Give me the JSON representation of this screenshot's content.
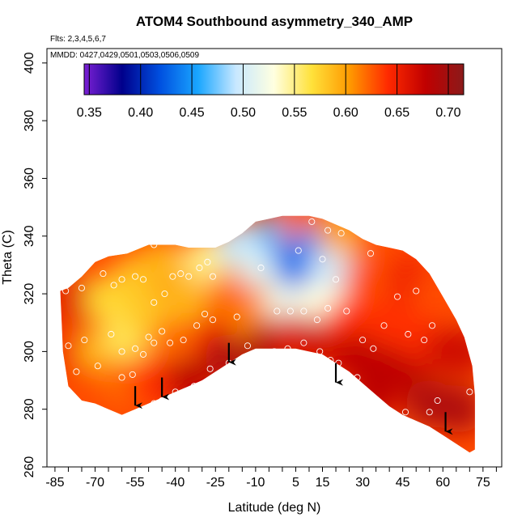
{
  "chart_data": {
    "type": "heatmap",
    "title": "ATOM4 Southbound asymmetry_340_AMP",
    "annotations": [
      "Flts: 2,3,4,5,6,7",
      "MMDD: 0427,0429,0501,0503,0506,0509"
    ],
    "xlabel": "Latitude (deg N)",
    "ylabel": "Theta (C)",
    "xlim": [
      -88,
      82
    ],
    "ylim": [
      260,
      405
    ],
    "x_ticks": [
      -85,
      -70,
      -55,
      -40,
      -25,
      -10,
      5,
      15,
      30,
      45,
      60,
      75
    ],
    "y_ticks": [
      260,
      280,
      300,
      320,
      340,
      360,
      380,
      400
    ],
    "colorbar": {
      "min": 0.345,
      "max": 0.715,
      "ticks": [
        0.35,
        0.4,
        0.45,
        0.5,
        0.55,
        0.6,
        0.65,
        0.7
      ],
      "tick_labels": [
        "0.35",
        "0.40",
        "0.45",
        "0.50",
        "0.55",
        "0.60",
        "0.65",
        "0.70"
      ],
      "colors": [
        "#7b1fd4",
        "#00008b",
        "#0050e0",
        "#1aa6ff",
        "#c8e8ff",
        "#ffffe0",
        "#ffe13a",
        "#ff9900",
        "#ff2a00",
        "#c00000",
        "#8b1a1a"
      ]
    },
    "domain_top": [
      [
        -83,
        321
      ],
      [
        -80,
        322
      ],
      [
        -75,
        326
      ],
      [
        -70,
        331
      ],
      [
        -65,
        333
      ],
      [
        -58,
        334
      ],
      [
        -50,
        337
      ],
      [
        -45,
        337
      ],
      [
        -40,
        337
      ],
      [
        -35,
        336
      ],
      [
        -30,
        336
      ],
      [
        -25,
        336
      ],
      [
        -20,
        338
      ],
      [
        -15,
        341
      ],
      [
        -10,
        345
      ],
      [
        -5,
        346
      ],
      [
        0,
        347
      ],
      [
        5,
        347
      ],
      [
        10,
        347
      ],
      [
        15,
        346
      ],
      [
        20,
        344
      ],
      [
        25,
        342
      ],
      [
        30,
        339
      ],
      [
        35,
        337
      ],
      [
        40,
        336
      ],
      [
        45,
        335
      ],
      [
        50,
        332
      ],
      [
        55,
        327
      ],
      [
        60,
        319
      ],
      [
        65,
        311
      ],
      [
        68,
        305
      ],
      [
        71,
        295
      ],
      [
        72,
        285
      ]
    ],
    "domain_bottom": [
      [
        -83,
        321
      ],
      [
        -82,
        300
      ],
      [
        -80,
        288
      ],
      [
        -75,
        283
      ],
      [
        -70,
        282
      ],
      [
        -65,
        280
      ],
      [
        -60,
        278
      ],
      [
        -55,
        280
      ],
      [
        -50,
        282
      ],
      [
        -45,
        284
      ],
      [
        -40,
        286
      ],
      [
        -35,
        288
      ],
      [
        -30,
        290
      ],
      [
        -25,
        293
      ],
      [
        -20,
        296
      ],
      [
        -15,
        299
      ],
      [
        -10,
        301
      ],
      [
        -5,
        301
      ],
      [
        0,
        301
      ],
      [
        5,
        301
      ],
      [
        10,
        300
      ],
      [
        15,
        299
      ],
      [
        20,
        296
      ],
      [
        25,
        293
      ],
      [
        30,
        289
      ],
      [
        35,
        285
      ],
      [
        40,
        281
      ],
      [
        45,
        278
      ],
      [
        50,
        276
      ],
      [
        55,
        274
      ],
      [
        60,
        271
      ],
      [
        65,
        268
      ],
      [
        70,
        265
      ],
      [
        72,
        266
      ]
    ],
    "blob_values": [
      {
        "x": -78,
        "y": 300,
        "v": 0.65
      },
      {
        "x": -78,
        "y": 318,
        "v": 0.66
      },
      {
        "x": -68,
        "y": 300,
        "v": 0.59
      },
      {
        "x": -65,
        "y": 318,
        "v": 0.57
      },
      {
        "x": -60,
        "y": 290,
        "v": 0.62
      },
      {
        "x": -58,
        "y": 305,
        "v": 0.56
      },
      {
        "x": -55,
        "y": 325,
        "v": 0.58
      },
      {
        "x": -50,
        "y": 312,
        "v": 0.58
      },
      {
        "x": -48,
        "y": 290,
        "v": 0.64
      },
      {
        "x": -45,
        "y": 330,
        "v": 0.59
      },
      {
        "x": -40,
        "y": 304,
        "v": 0.62
      },
      {
        "x": -35,
        "y": 290,
        "v": 0.68
      },
      {
        "x": -35,
        "y": 318,
        "v": 0.59
      },
      {
        "x": -28,
        "y": 332,
        "v": 0.55
      },
      {
        "x": -25,
        "y": 305,
        "v": 0.65
      },
      {
        "x": -20,
        "y": 298,
        "v": 0.69
      },
      {
        "x": -20,
        "y": 318,
        "v": 0.62
      },
      {
        "x": -15,
        "y": 337,
        "v": 0.49
      },
      {
        "x": -10,
        "y": 310,
        "v": 0.61
      },
      {
        "x": -8,
        "y": 330,
        "v": 0.51
      },
      {
        "x": -5,
        "y": 302,
        "v": 0.69
      },
      {
        "x": 0,
        "y": 340,
        "v": 0.46
      },
      {
        "x": 2,
        "y": 318,
        "v": 0.52
      },
      {
        "x": 5,
        "y": 305,
        "v": 0.66
      },
      {
        "x": 6,
        "y": 330,
        "v": 0.43
      },
      {
        "x": 8,
        "y": 343,
        "v": 0.62
      },
      {
        "x": 12,
        "y": 335,
        "v": 0.44
      },
      {
        "x": 15,
        "y": 318,
        "v": 0.53
      },
      {
        "x": 15,
        "y": 303,
        "v": 0.67
      },
      {
        "x": 20,
        "y": 330,
        "v": 0.5
      },
      {
        "x": 22,
        "y": 342,
        "v": 0.6
      },
      {
        "x": 25,
        "y": 310,
        "v": 0.64
      },
      {
        "x": 28,
        "y": 298,
        "v": 0.68
      },
      {
        "x": 32,
        "y": 325,
        "v": 0.63
      },
      {
        "x": 35,
        "y": 285,
        "v": 0.68
      },
      {
        "x": 40,
        "y": 310,
        "v": 0.64
      },
      {
        "x": 45,
        "y": 295,
        "v": 0.68
      },
      {
        "x": 48,
        "y": 325,
        "v": 0.65
      },
      {
        "x": 52,
        "y": 305,
        "v": 0.64
      },
      {
        "x": 55,
        "y": 282,
        "v": 0.69
      },
      {
        "x": 58,
        "y": 320,
        "v": 0.63
      },
      {
        "x": 62,
        "y": 300,
        "v": 0.67
      },
      {
        "x": 66,
        "y": 280,
        "v": 0.69
      },
      {
        "x": 68,
        "y": 300,
        "v": 0.67
      }
    ],
    "observations": [
      [
        -81,
        321
      ],
      [
        -75,
        322
      ],
      [
        -67,
        327
      ],
      [
        -63,
        323
      ],
      [
        -60,
        325
      ],
      [
        -55,
        326
      ],
      [
        -52,
        325
      ],
      [
        -48,
        337
      ],
      [
        -48,
        317
      ],
      [
        -44,
        320
      ],
      [
        -41,
        326
      ],
      [
        -38,
        327
      ],
      [
        -35,
        326
      ],
      [
        -31,
        329
      ],
      [
        -28,
        331
      ],
      [
        -26,
        326
      ],
      [
        -45,
        307
      ],
      [
        -50,
        305
      ],
      [
        -52,
        299
      ],
      [
        -55,
        301
      ],
      [
        -48,
        303
      ],
      [
        -42,
        303
      ],
      [
        -37,
        304
      ],
      [
        -32,
        309
      ],
      [
        -29,
        313
      ],
      [
        -26,
        311
      ],
      [
        -64,
        306
      ],
      [
        -60,
        300
      ],
      [
        -56,
        292
      ],
      [
        -69,
        295
      ],
      [
        -74,
        304
      ],
      [
        -80,
        302
      ],
      [
        -80,
        286
      ],
      [
        -77,
        293
      ],
      [
        -60,
        291
      ],
      [
        -48,
        282
      ],
      [
        -45,
        283
      ],
      [
        -40,
        286
      ],
      [
        -33,
        288
      ],
      [
        -27,
        294
      ],
      [
        -20,
        296
      ],
      [
        -13,
        302
      ],
      [
        -3,
        300
      ],
      [
        2,
        301
      ],
      [
        8,
        303
      ],
      [
        14,
        300
      ],
      [
        18,
        297
      ],
      [
        21,
        296
      ],
      [
        28,
        291
      ],
      [
        -8,
        329
      ],
      [
        6,
        335
      ],
      [
        11,
        345
      ],
      [
        17,
        342
      ],
      [
        17,
        315
      ],
      [
        15,
        332
      ],
      [
        13,
        311
      ],
      [
        20,
        325
      ],
      [
        22,
        341
      ],
      [
        33,
        334
      ],
      [
        30,
        304
      ],
      [
        34,
        301
      ],
      [
        38,
        309
      ],
      [
        43,
        319
      ],
      [
        47,
        306
      ],
      [
        50,
        321
      ],
      [
        53,
        304
      ],
      [
        56,
        309
      ],
      [
        58,
        283
      ],
      [
        55,
        279
      ],
      [
        46,
        279
      ],
      [
        70,
        286
      ],
      [
        72,
        296
      ],
      [
        8,
        314
      ],
      [
        3,
        314
      ],
      [
        -2,
        314
      ],
      [
        -17,
        312
      ],
      [
        24,
        314
      ]
    ],
    "arrows": [
      [
        -55,
        288
      ],
      [
        -45,
        291
      ],
      [
        -20,
        303
      ],
      [
        20,
        296
      ],
      [
        61,
        279
      ]
    ]
  }
}
